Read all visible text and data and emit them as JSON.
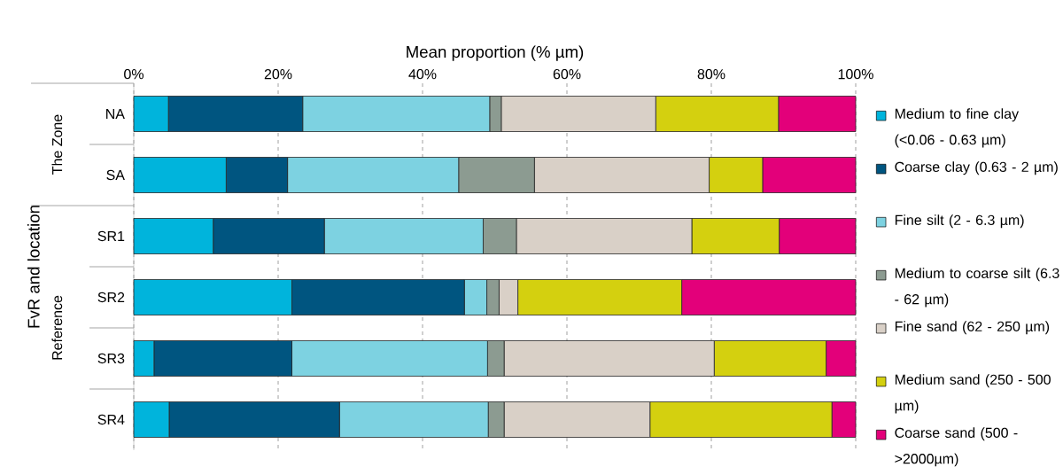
{
  "chart_data": {
    "type": "bar",
    "orientation": "horizontal",
    "stacked": true,
    "xlabel": "Mean proportion (% µm)",
    "ylabel": "FvR and location",
    "annotations": [
      "The Zone",
      "Reference"
    ],
    "categories": [
      "NA",
      "SA",
      "SR1",
      "SR2",
      "SR3",
      "SR4"
    ],
    "xlim": [
      0,
      100
    ],
    "xticks": [
      {
        "value": 0,
        "label": "0%"
      },
      {
        "value": 20,
        "label": "20%"
      },
      {
        "value": 40,
        "label": "40%"
      },
      {
        "value": 60,
        "label": "60%"
      },
      {
        "value": 80,
        "label": "80%"
      },
      {
        "value": 100,
        "label": "100%"
      }
    ],
    "grid": "x",
    "legend": "right",
    "series": [
      {
        "name": "Medium to fine clay (<0.06 - 0.63 µm)",
        "color": "#00b4dc",
        "values": [
          4.8,
          12.8,
          11.0,
          21.9,
          2.8,
          4.9
        ]
      },
      {
        "name": "Coarse clay (0.63 - 2 µm)",
        "color": "#005580",
        "values": [
          18.6,
          8.5,
          15.4,
          23.9,
          19.1,
          23.6
        ]
      },
      {
        "name": "Fine silt (2 - 6.3 µm)",
        "color": "#7dd2e1",
        "values": [
          25.9,
          23.7,
          22.0,
          3.1,
          27.1,
          20.6
        ]
      },
      {
        "name": "Medium to coarse silt (6.3 - 62 µm)",
        "color": "#8c9b91",
        "values": [
          1.6,
          10.5,
          4.6,
          1.7,
          2.3,
          2.2
        ]
      },
      {
        "name": "Fine sand (62 - 250 µm)",
        "color": "#d9d0c7",
        "values": [
          21.4,
          24.2,
          24.3,
          2.6,
          29.1,
          20.2
        ]
      },
      {
        "name": "Medium sand (250 - 500 µm)",
        "color": "#d4d00f",
        "values": [
          17.0,
          7.4,
          12.1,
          22.7,
          15.5,
          25.2
        ]
      },
      {
        "name": "Coarse sand (500 - >2000µm)",
        "color": "#e3007a",
        "values": [
          10.7,
          12.9,
          10.6,
          24.1,
          4.1,
          3.3
        ]
      }
    ]
  }
}
